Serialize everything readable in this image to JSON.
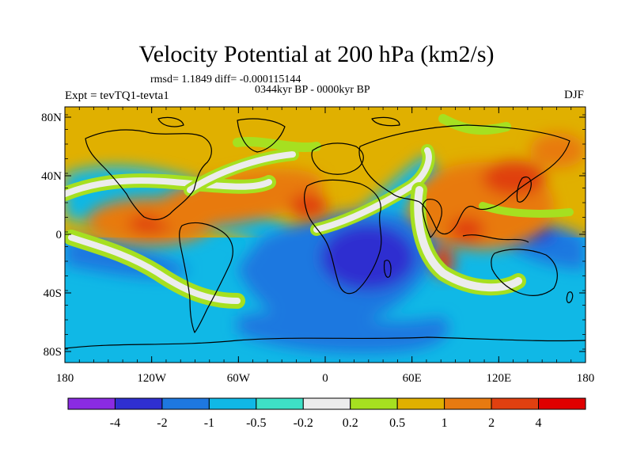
{
  "title": "Velocity Potential at 200 hPa (km2/s)",
  "stats": "rmsd= 1.1849 diff= -0.000115144",
  "period": "0344kyr BP - 0000kyr BP",
  "experiment": "Expt = tevTQ1-tevta1",
  "season": "DJF",
  "lat_ticks": [
    "80N",
    "40N",
    "0",
    "40S",
    "80S"
  ],
  "lon_ticks": [
    "180",
    "120W",
    "60W",
    "0",
    "60E",
    "120E",
    "180"
  ],
  "colorbar": {
    "labels": [
      "-4",
      "-2",
      "-1",
      "-0.5",
      "-0.2",
      "0.2",
      "0.5",
      "1",
      "2",
      "4"
    ],
    "colors": [
      "#8a2be2",
      "#2f2fd0",
      "#1e78e0",
      "#10b8e6",
      "#3ee0c6",
      "#ececec",
      "#a6e020",
      "#e0b000",
      "#e87a10",
      "#e04010",
      "#e00000"
    ]
  }
}
